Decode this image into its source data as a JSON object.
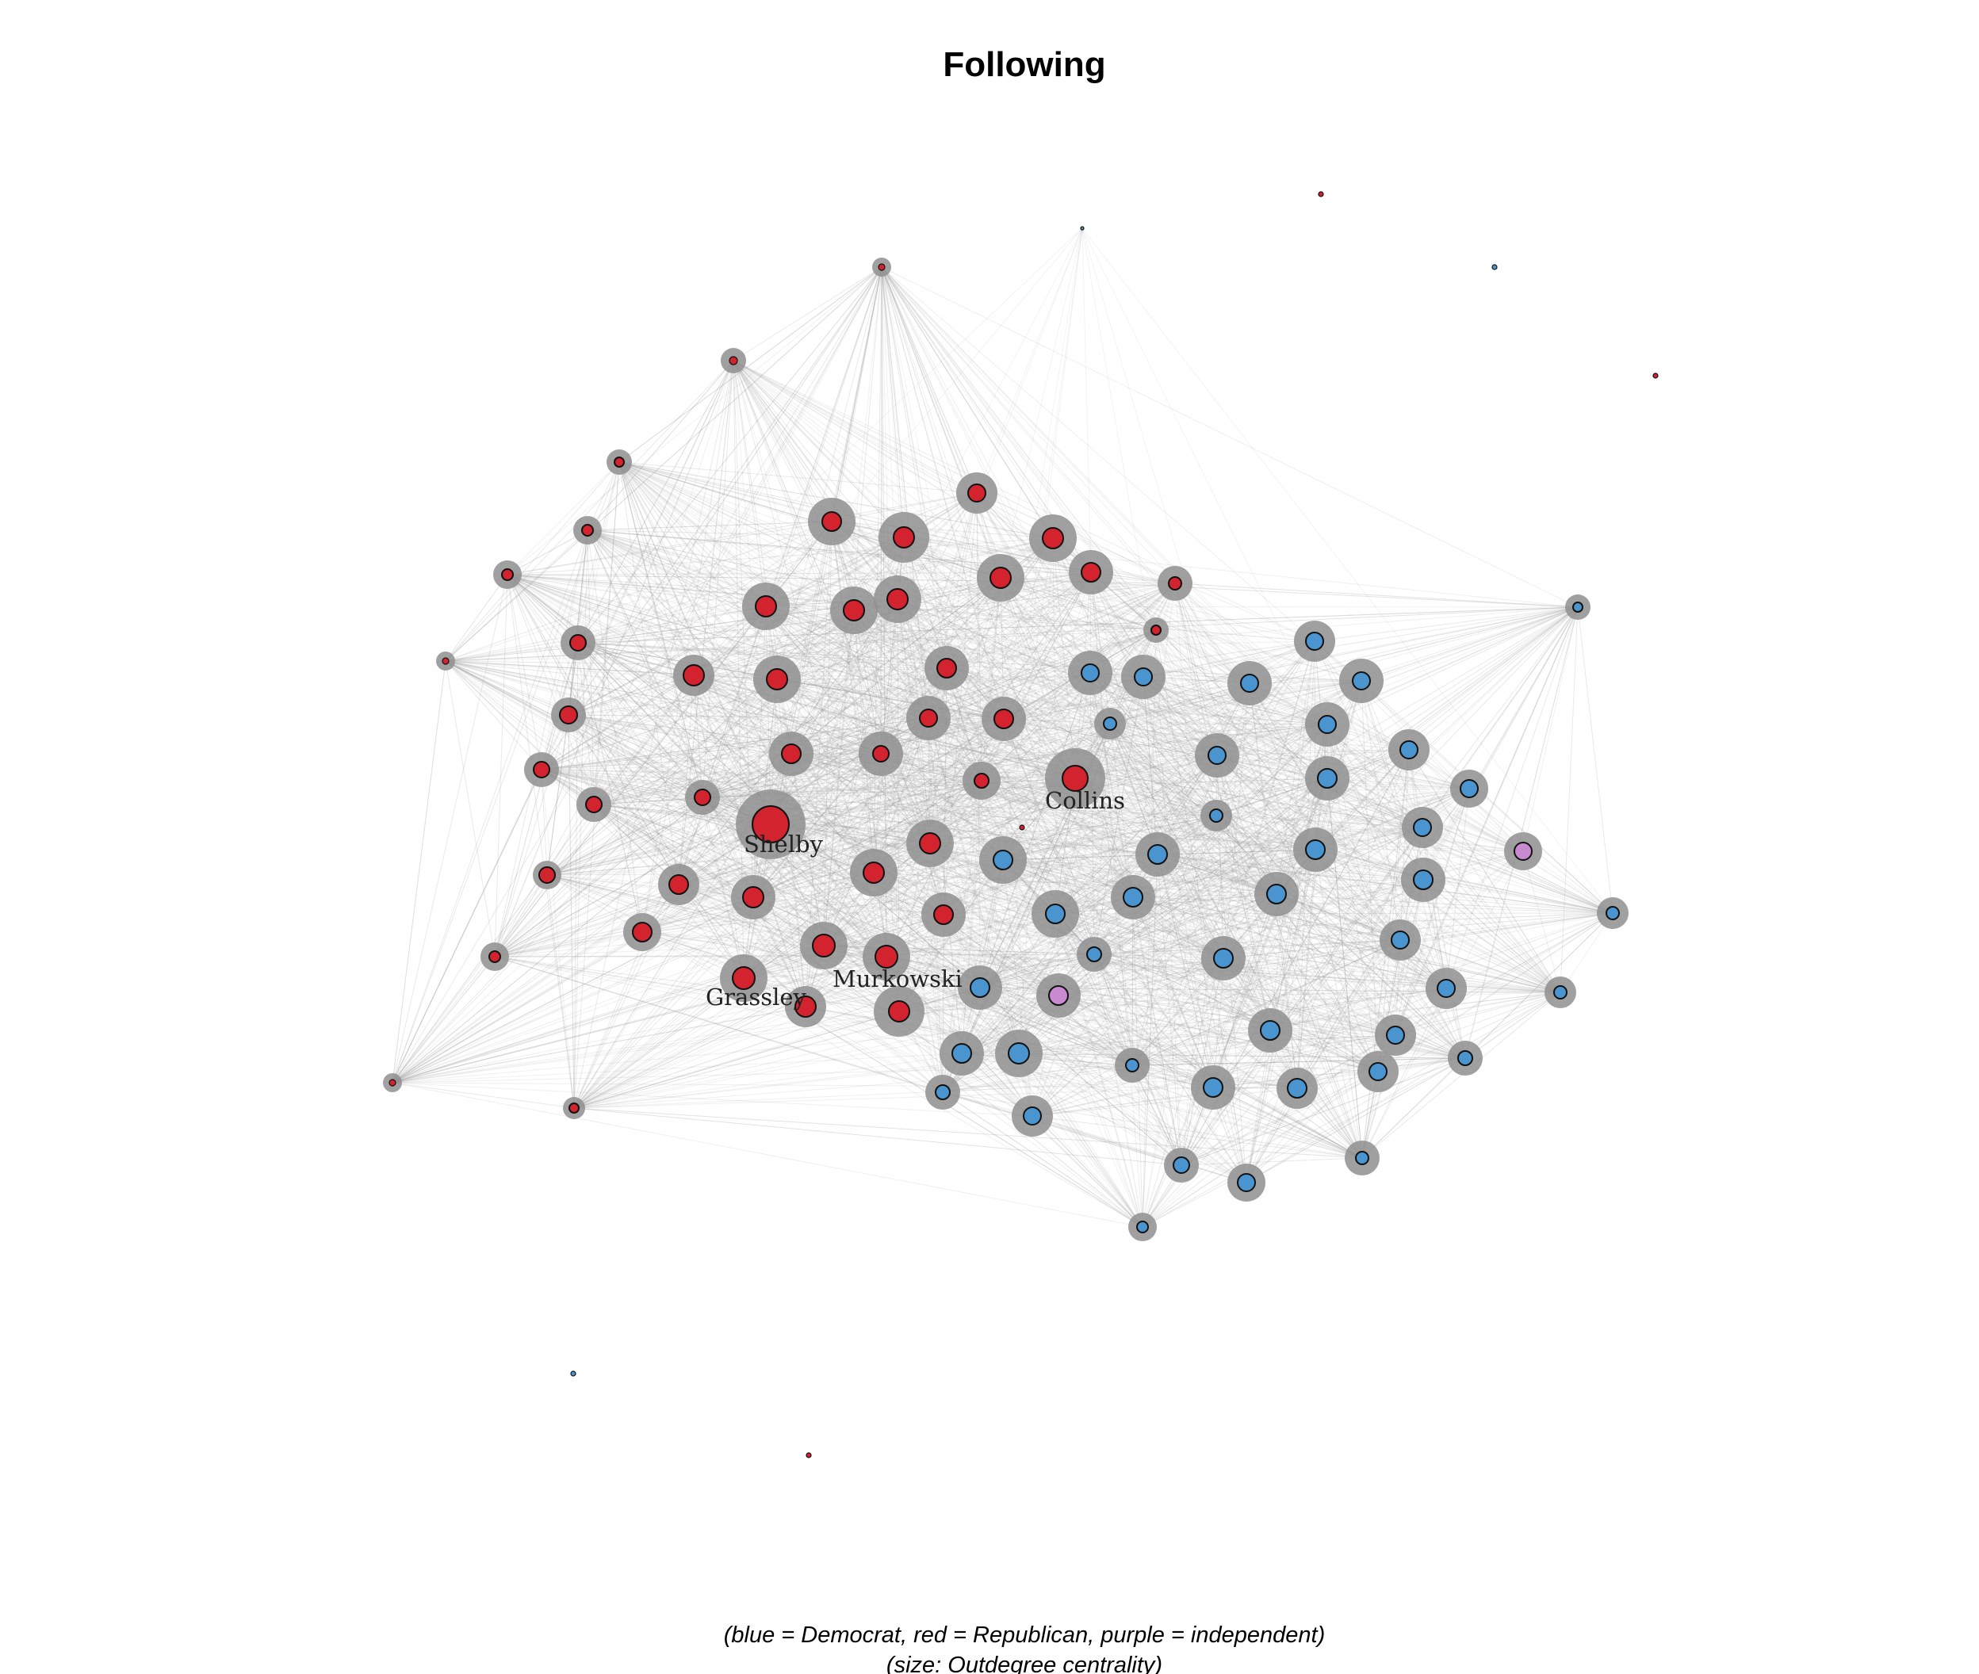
{
  "title": "Following",
  "caption": {
    "line1": "(blue = Democrat, red = Republican, purple = independent)",
    "line2": "(size: Outdegree centrality)"
  },
  "colors": {
    "democrat": "#4a95d0",
    "republican": "#d3232e",
    "independent": "#c98bd0",
    "edge": "#9a9a9a",
    "halo": "#8f8f8f"
  },
  "labels": {
    "shelby": "Shelby",
    "collins": "Collins",
    "grassley": "Grassley",
    "murkowski": "Murkowski"
  }
}
